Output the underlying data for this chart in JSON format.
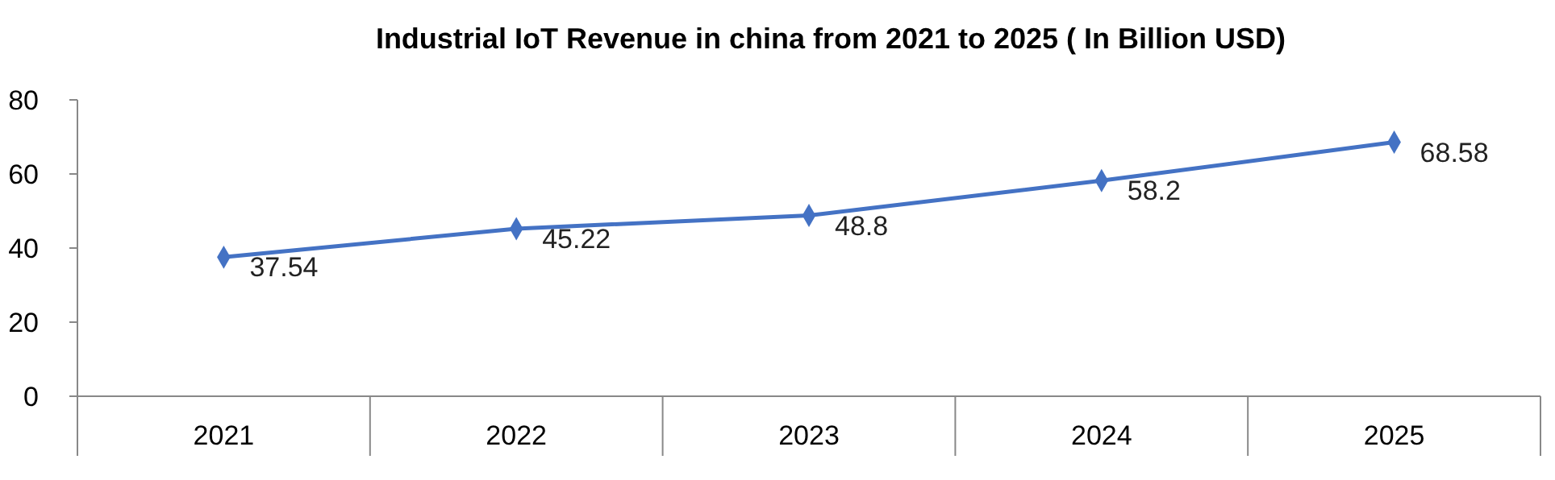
{
  "chart_data": {
    "type": "line",
    "title": "Industrial IoT Revenue in china from 2021 to 2025 ( In Billion USD)",
    "categories": [
      "2021",
      "2022",
      "2023",
      "2024",
      "2025"
    ],
    "series": [
      {
        "color": "#4472c4",
        "values": [
          37.54,
          45.22,
          48.8,
          58.2,
          68.58
        ]
      }
    ],
    "ylim": [
      0,
      80
    ],
    "yticks": [
      0,
      20,
      40,
      60,
      80
    ],
    "grid": false,
    "marker": "diamond",
    "line_style": "solid",
    "data_labels": true
  }
}
